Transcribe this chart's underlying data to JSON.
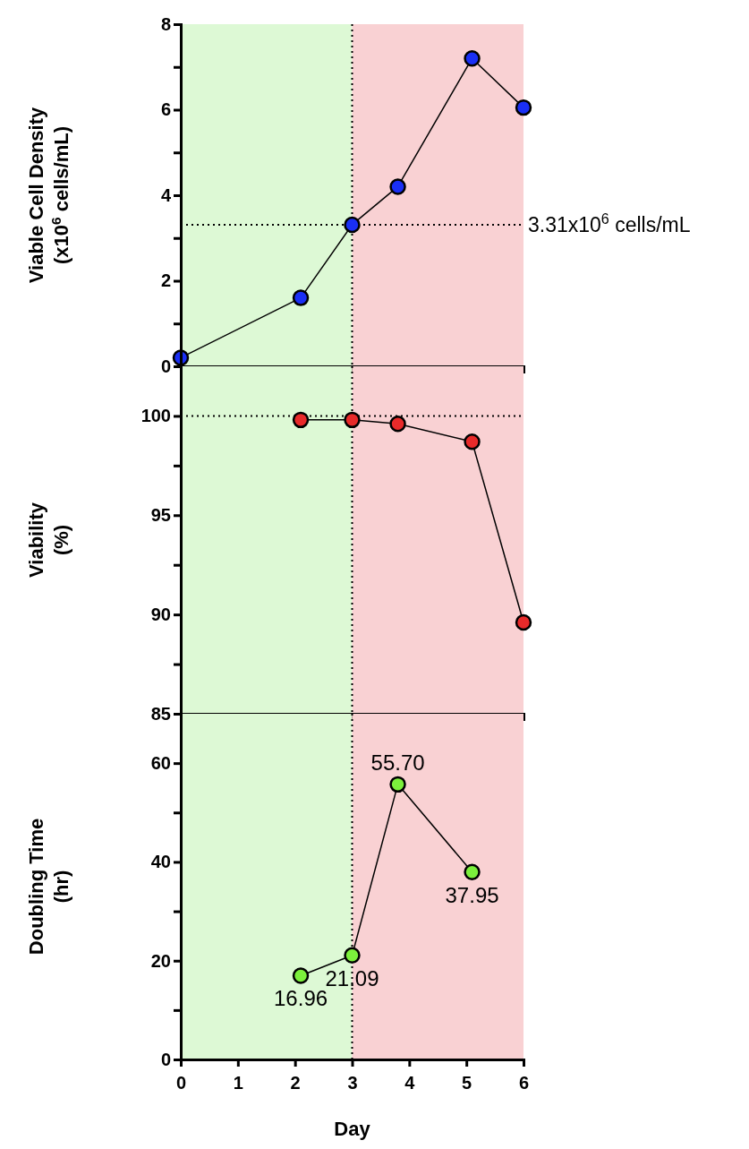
{
  "chart_data": [
    {
      "type": "line",
      "ylabel": "Viable Cell Density\n(x10$^{6}$ cells/mL)",
      "x": [
        0,
        2.1,
        3,
        3.8,
        5.1,
        6
      ],
      "series": [
        {
          "color": "#1a2ff5",
          "values": [
            0.2,
            1.6,
            3.31,
            4.2,
            7.2,
            6.05
          ]
        }
      ],
      "xlim": [
        0,
        6
      ],
      "xticks": [
        0,
        1,
        2,
        3,
        4,
        5,
        6
      ],
      "ylim": [
        0,
        8
      ],
      "yticks": [
        0,
        {
          "value": 1,
          "label": null
        },
        2,
        {
          "value": 3,
          "label": null
        },
        4,
        {
          "value": 5,
          "label": null
        },
        6,
        {
          "value": 7,
          "label": null
        },
        8
      ],
      "tick_labels": "y",
      "marker": "circle",
      "line_style": "solid",
      "grid": false,
      "bands": [
        {
          "axis": "x",
          "from": 0,
          "to": 3,
          "color": "#ddf9d5"
        },
        {
          "axis": "x",
          "from": 3,
          "to": 6,
          "color": "#f9d1d3"
        }
      ],
      "ref_lines": [
        {
          "axis": "x",
          "value": 3,
          "line_style": "dotted"
        },
        {
          "axis": "y",
          "value": 3.31,
          "label": "3.31x10$^{6}$ cells/mL",
          "line_style": "dotted"
        }
      ]
    },
    {
      "type": "line",
      "ylabel": "Viability\n(%)",
      "x": [
        2.1,
        3,
        3.8,
        5.1,
        6
      ],
      "series": [
        {
          "color": "#e82a2a",
          "values": [
            99.8,
            99.8,
            99.6,
            98.7,
            89.6
          ]
        }
      ],
      "xlim": [
        0,
        6
      ],
      "xticks": [
        0,
        1,
        2,
        3,
        4,
        5,
        6
      ],
      "ylim": [
        85,
        102.5
      ],
      "yticks": [
        85,
        {
          "value": 87.5,
          "label": null
        },
        90,
        {
          "value": 92.5,
          "label": null
        },
        95,
        {
          "value": 97.5,
          "label": null
        },
        100
      ],
      "tick_labels": "y",
      "marker": "circle",
      "line_style": "solid",
      "grid": false,
      "bands": [
        {
          "axis": "x",
          "from": 0,
          "to": 3,
          "color": "#ddf9d5"
        },
        {
          "axis": "x",
          "from": 3,
          "to": 6,
          "color": "#f9d1d3"
        }
      ],
      "ref_lines": [
        {
          "axis": "x",
          "value": 3,
          "line_style": "dotted"
        },
        {
          "axis": "y",
          "value": 100,
          "line_style": "dotted"
        }
      ]
    },
    {
      "type": "line",
      "xlabel": "Day",
      "ylabel": "Doubling Time\n(hr)",
      "x": [
        2.1,
        3,
        3.8,
        5.1
      ],
      "series": [
        {
          "color": "#7cf03c",
          "values": [
            16.96,
            21.09,
            55.7,
            37.95
          ]
        }
      ],
      "value_labels": [
        "16.96",
        "21.09",
        "55.70",
        "37.95"
      ],
      "xlim": [
        0,
        6
      ],
      "xticks": [
        0,
        1,
        2,
        3,
        4,
        5,
        6
      ],
      "ylim": [
        0,
        70
      ],
      "yticks": [
        0,
        {
          "value": 10,
          "label": null
        },
        20,
        {
          "value": 30,
          "label": null
        },
        40,
        {
          "value": 50,
          "label": null
        },
        60
      ],
      "marker": "circle",
      "line_style": "solid",
      "grid": false,
      "bands": [
        {
          "axis": "x",
          "from": 0,
          "to": 3,
          "color": "#ddf9d5"
        },
        {
          "axis": "x",
          "from": 3,
          "to": 6,
          "color": "#f9d1d3"
        }
      ],
      "ref_lines": [
        {
          "axis": "x",
          "value": 3,
          "line_style": "dotted"
        }
      ]
    }
  ]
}
